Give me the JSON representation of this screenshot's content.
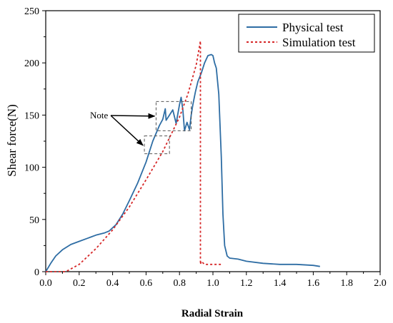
{
  "chart_data": {
    "type": "line",
    "xlabel": "Radial Strain",
    "ylabel": "Shear force(N)",
    "xlim": [
      0,
      2.0
    ],
    "ylim": [
      0,
      250
    ],
    "x_ticks": [
      "0.0",
      "0.2",
      "0.4",
      "0.6",
      "0.8",
      "1.0",
      "1.2",
      "1.4",
      "1.6",
      "1.8",
      "2.0"
    ],
    "y_ticks": [
      "0",
      "50",
      "100",
      "150",
      "200",
      "250"
    ],
    "legend_position": "top-right",
    "annotation": "Note",
    "series": [
      {
        "name": "Physical test",
        "color": "#2e6da4",
        "style": "solid",
        "x": [
          0,
          0.03,
          0.06,
          0.1,
          0.15,
          0.2,
          0.25,
          0.3,
          0.35,
          0.38,
          0.42,
          0.46,
          0.5,
          0.55,
          0.6,
          0.64,
          0.68,
          0.7,
          0.715,
          0.72,
          0.74,
          0.76,
          0.78,
          0.8,
          0.81,
          0.82,
          0.83,
          0.845,
          0.86,
          0.87,
          0.88,
          0.895,
          0.91,
          0.93,
          0.95,
          0.97,
          0.99,
          1.0,
          1.01,
          1.02,
          1.035,
          1.05,
          1.06,
          1.07,
          1.085,
          1.1,
          1.15,
          1.2,
          1.3,
          1.4,
          1.5,
          1.6,
          1.64
        ],
        "y": [
          0,
          8,
          15,
          21,
          26,
          29,
          32,
          35,
          37,
          39,
          45,
          55,
          68,
          85,
          105,
          125,
          140,
          146,
          156,
          145,
          150,
          155,
          142,
          160,
          167,
          155,
          135,
          143,
          136,
          150,
          160,
          172,
          182,
          190,
          200,
          207,
          208,
          207,
          200,
          195,
          170,
          110,
          55,
          25,
          15,
          13,
          12,
          10,
          8,
          7,
          7,
          6,
          5
        ]
      },
      {
        "name": "Simulation test",
        "color": "#d62728",
        "style": "dotted",
        "x": [
          0,
          0.12,
          0.2,
          0.3,
          0.4,
          0.5,
          0.6,
          0.7,
          0.8,
          0.85,
          0.9,
          0.925,
          0.925,
          0.925,
          0.93,
          0.95,
          1.0,
          1.05
        ],
        "y": [
          0,
          0,
          7,
          22,
          40,
          62,
          88,
          115,
          148,
          170,
          198,
          221,
          150,
          7,
          10,
          7,
          7,
          7
        ]
      }
    ],
    "note_boxes": [
      {
        "x0": 0.66,
        "x1": 0.87,
        "y0": 135,
        "y1": 163
      },
      {
        "x0": 0.59,
        "x1": 0.74,
        "y0": 113,
        "y1": 130
      }
    ],
    "note_arrow_targets": [
      {
        "x": 0.66,
        "y": 149
      },
      {
        "x": 0.59,
        "y": 121
      }
    ]
  }
}
